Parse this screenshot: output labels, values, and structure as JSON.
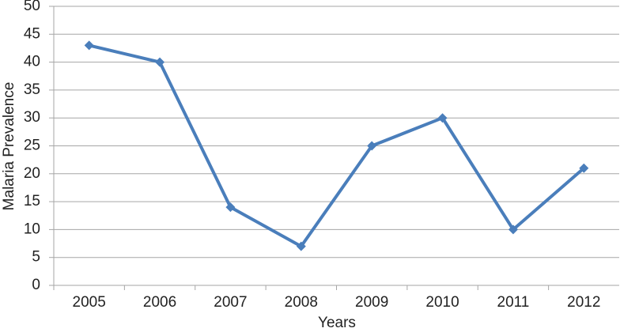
{
  "chart_data": {
    "type": "line",
    "x_label": "Years",
    "y_label": "Malaria  Prevalence",
    "categories": [
      "2005",
      "2006",
      "2007",
      "2008",
      "2009",
      "2010",
      "2011",
      "2012"
    ],
    "series": [
      {
        "color": "#4a7ebb",
        "values": [
          43,
          40,
          14,
          7,
          25,
          30,
          10,
          21
        ]
      }
    ],
    "ylim": [
      0,
      50
    ],
    "yticks": [
      0,
      5,
      10,
      15,
      20,
      25,
      30,
      35,
      40,
      45,
      50
    ],
    "grid": true
  }
}
